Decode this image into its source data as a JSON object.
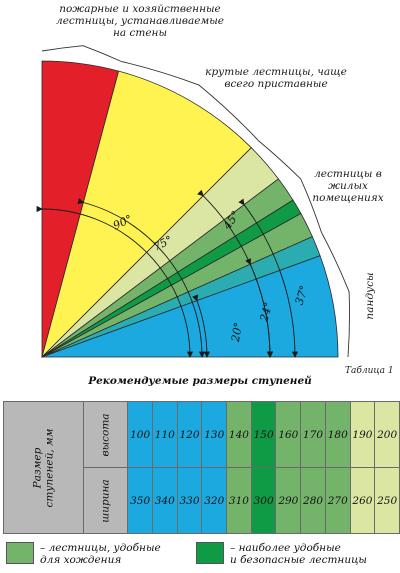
{
  "diagram": {
    "labels": {
      "fire_ladders": [
        "пожарные и хозяйственные",
        "лестницы, устанавливаемые",
        "на стены"
      ],
      "steep_ladders": [
        "крутые лестницы, чаще",
        "всего приставные"
      ],
      "residential": [
        "лестницы в",
        "жилых",
        "помещениях"
      ],
      "ramps": "пандусы"
    },
    "angles": [
      {
        "label": "90°",
        "value": 90
      },
      {
        "label": "75°",
        "value": 75
      },
      {
        "label": "45°",
        "value": 45
      },
      {
        "label": "37°",
        "value": 37
      },
      {
        "label": "24°",
        "value": 24
      },
      {
        "label": "20°",
        "value": 20
      }
    ],
    "colors": {
      "red": "#e3202a",
      "yellow": "#fff352",
      "pale": "#dbe6a3",
      "mid_green": "#74b46a",
      "dark_green": "#0f9a46",
      "teal": "#2aacb0",
      "blue": "#1ba9e0"
    }
  },
  "table": {
    "note": "Таблица 1",
    "title": "Рекомендуемые размеры ступеней",
    "row_group_label": [
      "Размер",
      "ступеней, мм"
    ],
    "rows": [
      {
        "label": "высота",
        "values": [
          "100",
          "110",
          "120",
          "130",
          "140",
          "150",
          "160",
          "170",
          "180",
          "190",
          "200"
        ]
      },
      {
        "label": "ширина",
        "values": [
          "350",
          "340",
          "330",
          "320",
          "310",
          "300",
          "290",
          "280",
          "270",
          "260",
          "250"
        ]
      }
    ],
    "column_colors": [
      "#1ba9e0",
      "#1ba9e0",
      "#1ba9e0",
      "#1ba9e0",
      "#74b46a",
      "#0f9a46",
      "#74b46a",
      "#74b46a",
      "#74b46a",
      "#dbe6a3",
      "#dbe6a3"
    ]
  },
  "legend": [
    {
      "color": "#74b46a",
      "text": [
        "– лестницы, удобные",
        "для хождения"
      ]
    },
    {
      "color": "#0f9a46",
      "text": [
        "– наиболее удобные",
        "и безопасные лестницы"
      ]
    }
  ]
}
